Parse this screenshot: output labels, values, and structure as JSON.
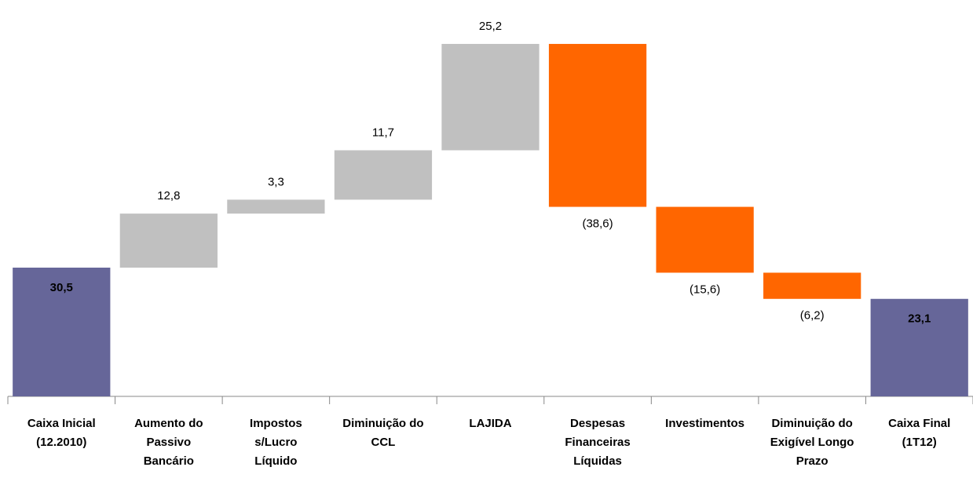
{
  "chart_data": {
    "type": "waterfall",
    "categories": [
      "Caixa Inicial\n(12.2010)",
      "Aumento do\nPassivo\nBancário",
      "Impostos\ns/Lucro\nLíquido",
      "Diminuição do\nCCL",
      "LAJIDA",
      "Despesas\nFinanceiras\nLíquidas",
      "Investimentos",
      "Diminuição do\nExigível Longo\nPrazo",
      "Caixa Final\n(1T12)"
    ],
    "values": [
      30.5,
      12.8,
      3.3,
      11.7,
      25.2,
      -38.6,
      -15.6,
      -6.2,
      23.1
    ],
    "value_labels": [
      "30,5",
      "12,8",
      "3,3",
      "11,7",
      "25,2",
      "(38,6)",
      "(15,6)",
      "(6,2)",
      "23,1"
    ],
    "measures": [
      "total",
      "relative",
      "relative",
      "relative",
      "relative",
      "relative",
      "relative",
      "relative",
      "total"
    ],
    "colors": {
      "total": "#666699",
      "increase": "#c0c0c0",
      "decrease": "#ff6600"
    },
    "ylim": [
      0,
      90
    ]
  }
}
